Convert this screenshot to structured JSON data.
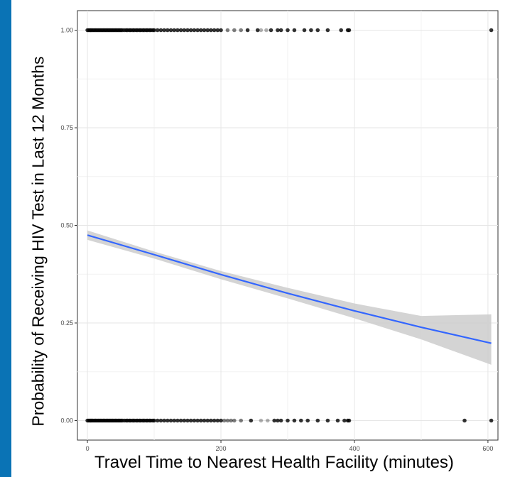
{
  "chart_data": {
    "type": "scatter",
    "xlabel": "Travel Time to Nearest Health Facility (minutes)",
    "ylabel": "Probability of Receiving HIV Test in Last 12 Months",
    "xlim": [
      -15,
      615
    ],
    "ylim": [
      -0.05,
      1.05
    ],
    "x_ticks": [
      0,
      200,
      400,
      600
    ],
    "y_ticks": [
      0.0,
      0.25,
      0.5,
      0.75,
      1.0
    ],
    "x_tick_labels": [
      "0",
      "200",
      "400",
      "600"
    ],
    "y_tick_labels": [
      "0.00",
      "0.25",
      "0.50",
      "0.75",
      "1.00"
    ],
    "grid": true,
    "colors": {
      "background": "#0a73b5",
      "line": "#3366ff",
      "ribbon": "#cccccc",
      "points": "#000000"
    },
    "points_y1": [
      0,
      2,
      4,
      6,
      8,
      10,
      12,
      14,
      16,
      18,
      20,
      22,
      24,
      26,
      28,
      30,
      32,
      34,
      36,
      38,
      40,
      42,
      44,
      46,
      48,
      50,
      52,
      55,
      58,
      60,
      63,
      65,
      68,
      70,
      73,
      75,
      78,
      80,
      83,
      85,
      88,
      90,
      93,
      95,
      98,
      100,
      105,
      110,
      115,
      120,
      125,
      130,
      135,
      140,
      145,
      150,
      155,
      160,
      165,
      170,
      175,
      180,
      185,
      190,
      195,
      200,
      210,
      220,
      230,
      240,
      255,
      260,
      268,
      275,
      285,
      290,
      300,
      310,
      325,
      335,
      345,
      360,
      380,
      390,
      392,
      605
    ],
    "points_y0": [
      0,
      2,
      4,
      6,
      8,
      10,
      12,
      14,
      16,
      18,
      20,
      22,
      24,
      26,
      28,
      30,
      32,
      34,
      36,
      38,
      40,
      42,
      44,
      46,
      48,
      50,
      52,
      55,
      58,
      60,
      63,
      65,
      68,
      70,
      73,
      75,
      78,
      80,
      83,
      85,
      88,
      90,
      93,
      95,
      98,
      100,
      105,
      110,
      115,
      120,
      125,
      130,
      135,
      140,
      145,
      150,
      155,
      160,
      165,
      170,
      175,
      180,
      185,
      190,
      195,
      200,
      205,
      210,
      215,
      220,
      230,
      245,
      260,
      270,
      280,
      285,
      290,
      300,
      310,
      320,
      330,
      345,
      360,
      375,
      385,
      390,
      392,
      565,
      605
    ],
    "fit_line": {
      "x": [
        0,
        100,
        200,
        300,
        400,
        500,
        605
      ],
      "y": [
        0.475,
        0.425,
        0.374,
        0.326,
        0.281,
        0.239,
        0.198
      ]
    },
    "ribbon_upper": [
      0.487,
      0.433,
      0.383,
      0.34,
      0.3,
      0.268,
      0.272
    ],
    "ribbon_lower": [
      0.463,
      0.415,
      0.362,
      0.313,
      0.262,
      0.208,
      0.143
    ]
  }
}
